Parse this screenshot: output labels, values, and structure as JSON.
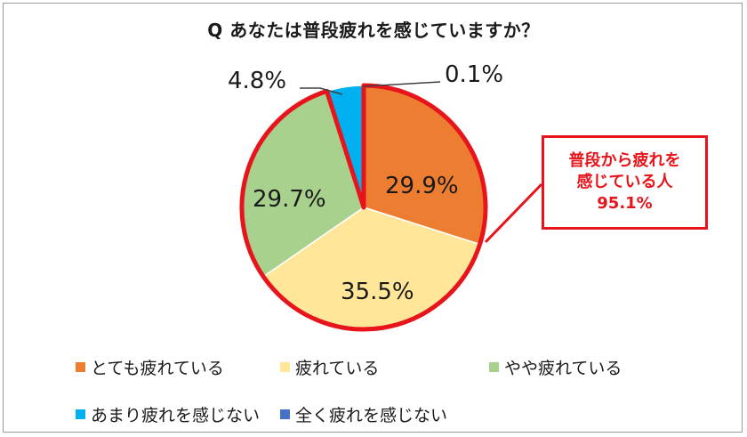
{
  "chart_data": {
    "type": "pie",
    "title": "Q あなたは普段疲れを感じていますか？",
    "slices": [
      {
        "label": "とても疲れている",
        "value": 29.9,
        "display": "29.9%",
        "color": "#ed7d31"
      },
      {
        "label": "疲れている",
        "value": 35.5,
        "display": "35.5%",
        "color": "#ffe699"
      },
      {
        "label": "やや疲れている",
        "value": 29.7,
        "display": "29.7%",
        "color": "#a9d18e"
      },
      {
        "label": "あまり疲れを感じない",
        "value": 4.8,
        "display": "4.8%",
        "color": "#00b0f0"
      },
      {
        "label": "全く疲れを感じない",
        "value": 0.1,
        "display": "0.1%",
        "color": "#4472c4"
      }
    ],
    "legend_position": "bottom",
    "highlight": {
      "lines": [
        "普段から疲れを",
        "感じている人",
        "95.1%"
      ],
      "color": "#e8141c"
    }
  }
}
